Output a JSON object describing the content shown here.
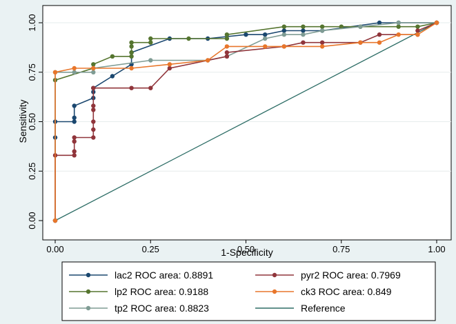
{
  "chart_data": {
    "type": "line",
    "title": "",
    "xlabel": "1-Specificity",
    "ylabel": "Sensitivity",
    "xlim": [
      0,
      1
    ],
    "ylim": [
      0,
      1
    ],
    "x_ticks": [
      "0.00",
      "0.25",
      "0.50",
      "0.75",
      "1.00"
    ],
    "y_ticks": [
      "0.00",
      "0.25",
      "0.50",
      "0.75",
      "1.00"
    ],
    "grid": "horizontal",
    "legend_position": "bottom",
    "series": [
      {
        "name": "lac2 ROC area: 0.8891",
        "color": "#1a476f",
        "x": [
          0,
          0,
          0,
          0.05,
          0.05,
          0.05,
          0.1,
          0.1,
          0.1,
          0.15,
          0.2,
          0.2,
          0.3,
          0.4,
          0.5,
          0.55,
          0.6,
          0.65,
          0.7,
          0.85,
          0.9,
          1.0
        ],
        "y": [
          0,
          0.42,
          0.5,
          0.5,
          0.52,
          0.58,
          0.62,
          0.65,
          0.67,
          0.73,
          0.79,
          0.85,
          0.92,
          0.92,
          0.94,
          0.94,
          0.96,
          0.96,
          0.96,
          1.0,
          1.0,
          1.0
        ]
      },
      {
        "name": "lp2 ROC area: 0.9188",
        "color": "#55752f",
        "x": [
          0,
          0,
          0.1,
          0.1,
          0.15,
          0.2,
          0.2,
          0.2,
          0.2,
          0.25,
          0.25,
          0.35,
          0.45,
          0.45,
          0.6,
          0.65,
          0.7,
          0.75,
          0.8,
          0.9,
          0.95,
          1.0
        ],
        "y": [
          0,
          0.71,
          0.77,
          0.79,
          0.83,
          0.83,
          0.85,
          0.88,
          0.9,
          0.9,
          0.92,
          0.92,
          0.92,
          0.94,
          0.98,
          0.98,
          0.98,
          0.98,
          0.98,
          0.98,
          0.98,
          1.0
        ]
      },
      {
        "name": "tp2 ROC area: 0.8823",
        "color": "#7f9c94",
        "x": [
          0,
          0,
          0.05,
          0.1,
          0.1,
          0.25,
          0.4,
          0.45,
          0.55,
          0.6,
          0.65,
          0.7,
          0.8,
          0.9,
          1.0
        ],
        "y": [
          0,
          0.75,
          0.75,
          0.75,
          0.77,
          0.81,
          0.81,
          0.83,
          0.92,
          0.94,
          0.94,
          0.96,
          0.98,
          1.0,
          1.0
        ]
      },
      {
        "name": "pyr2 ROC area: 0.7969",
        "color": "#90353b",
        "x": [
          0,
          0,
          0.05,
          0.05,
          0.05,
          0.05,
          0.1,
          0.1,
          0.1,
          0.1,
          0.1,
          0.1,
          0.2,
          0.25,
          0.3,
          0.45,
          0.45,
          0.6,
          0.65,
          0.7,
          0.8,
          0.85,
          0.95,
          0.95,
          1.0
        ],
        "y": [
          0,
          0.33,
          0.33,
          0.35,
          0.4,
          0.42,
          0.42,
          0.46,
          0.5,
          0.56,
          0.58,
          0.67,
          0.67,
          0.67,
          0.77,
          0.83,
          0.85,
          0.88,
          0.9,
          0.9,
          0.9,
          0.94,
          0.94,
          0.96,
          1.0
        ]
      },
      {
        "name": "ck3 ROC area: 0.849",
        "color": "#e8762b",
        "x": [
          0,
          0,
          0.05,
          0.1,
          0.2,
          0.3,
          0.4,
          0.45,
          0.55,
          0.6,
          0.7,
          0.8,
          0.85,
          0.9,
          0.95,
          1.0
        ],
        "y": [
          0,
          0.75,
          0.77,
          0.77,
          0.77,
          0.79,
          0.81,
          0.88,
          0.88,
          0.88,
          0.88,
          0.9,
          0.9,
          0.94,
          0.94,
          1.0
        ]
      },
      {
        "name": "Reference",
        "color": "#2d6d66",
        "x": [
          0,
          1
        ],
        "y": [
          0,
          1
        ]
      }
    ]
  }
}
